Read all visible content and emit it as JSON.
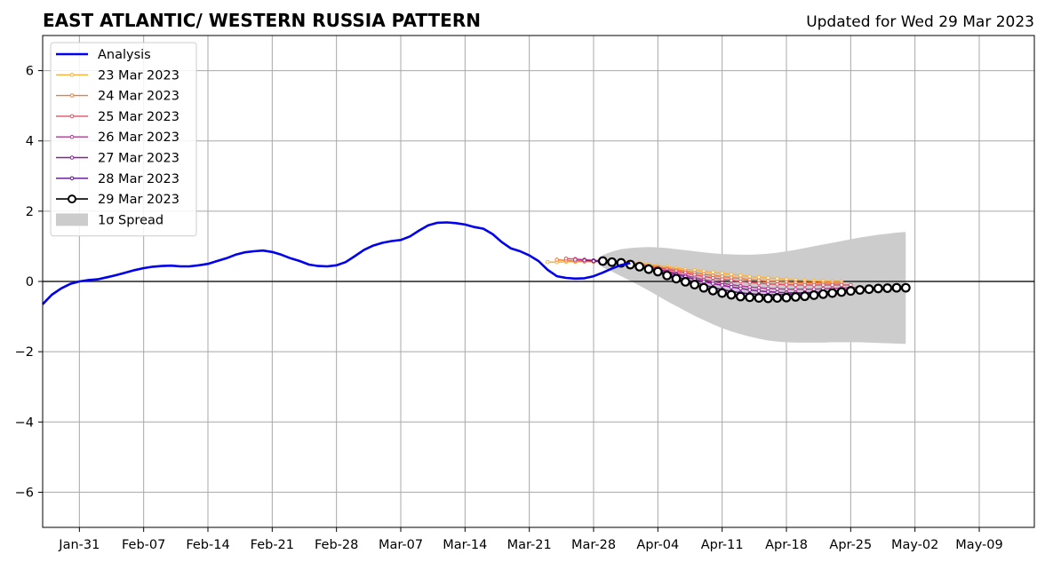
{
  "title": "EAST ATLANTIC/ WESTERN RUSSIA PATTERN",
  "updated": "Updated for Wed 29 Mar 2023",
  "chart_data": {
    "type": "line",
    "title": "EAST ATLANTIC/ WESTERN RUSSIA PATTERN",
    "xlabel": "",
    "ylabel": "",
    "xlim": [
      "2023-01-27",
      "2023-05-15"
    ],
    "ylim": [
      -7,
      7
    ],
    "grid": true,
    "legend_position": "top-left",
    "x_tick_labels": [
      "Jan-31",
      "Feb-07",
      "Feb-14",
      "Feb-21",
      "Feb-28",
      "Mar-07",
      "Mar-14",
      "Mar-21",
      "Mar-28",
      "Apr-04",
      "Apr-11",
      "Apr-18",
      "Apr-25",
      "May-02",
      "May-09"
    ],
    "x_ticks": [
      "2023-01-31",
      "2023-02-07",
      "2023-02-14",
      "2023-02-21",
      "2023-02-28",
      "2023-03-07",
      "2023-03-14",
      "2023-03-21",
      "2023-03-28",
      "2023-04-04",
      "2023-04-11",
      "2023-04-18",
      "2023-04-25",
      "2023-05-02",
      "2023-05-09"
    ],
    "y_ticks": [
      -6,
      -4,
      -2,
      0,
      2,
      4,
      6
    ],
    "y_tick_labels": [
      "−6",
      "−4",
      "−2",
      "0",
      "2",
      "4",
      "6"
    ],
    "analysis": {
      "name": "Analysis",
      "color": "#0000ee",
      "start": "2023-01-27",
      "values": [
        -0.65,
        -0.38,
        -0.2,
        -0.07,
        0.0,
        0.04,
        0.06,
        0.12,
        0.18,
        0.25,
        0.32,
        0.38,
        0.42,
        0.44,
        0.45,
        0.43,
        0.43,
        0.46,
        0.5,
        0.58,
        0.66,
        0.76,
        0.83,
        0.86,
        0.88,
        0.84,
        0.76,
        0.66,
        0.58,
        0.48,
        0.44,
        0.43,
        0.46,
        0.55,
        0.72,
        0.9,
        1.02,
        1.1,
        1.15,
        1.18,
        1.28,
        1.45,
        1.6,
        1.67,
        1.68,
        1.66,
        1.62,
        1.55,
        1.5,
        1.35,
        1.12,
        0.94,
        0.86,
        0.74,
        0.58,
        0.33,
        0.15,
        0.1,
        0.08,
        0.09,
        0.15,
        0.25,
        0.37,
        0.47,
        0.52
      ]
    },
    "forecasts": [
      {
        "name": "23 Mar 2023",
        "color": "#f9b13c",
        "start": "2023-03-23",
        "values": [
          0.55,
          0.55,
          0.56,
          0.56,
          0.57,
          0.58,
          0.58,
          0.58,
          0.57,
          0.55,
          0.52,
          0.49,
          0.45,
          0.42,
          0.38,
          0.35,
          0.32,
          0.29,
          0.26,
          0.23,
          0.2,
          0.17,
          0.14,
          0.12,
          0.1,
          0.08,
          0.06,
          0.04,
          0.03,
          0.02,
          0.01,
          0.0,
          0.0
        ]
      },
      {
        "name": "24 Mar 2023",
        "color": "#f07c3a",
        "start": "2023-03-24",
        "values": [
          0.62,
          0.6,
          0.58,
          0.57,
          0.56,
          0.56,
          0.55,
          0.54,
          0.52,
          0.49,
          0.45,
          0.41,
          0.37,
          0.33,
          0.29,
          0.25,
          0.21,
          0.17,
          0.14,
          0.11,
          0.08,
          0.05,
          0.03,
          0.01,
          -0.01,
          -0.02,
          -0.03,
          -0.04,
          -0.04,
          -0.05,
          -0.05,
          -0.05
        ]
      },
      {
        "name": "25 Mar 2023",
        "color": "#dc5566",
        "start": "2023-03-25",
        "values": [
          0.65,
          0.64,
          0.62,
          0.6,
          0.59,
          0.57,
          0.55,
          0.52,
          0.48,
          0.44,
          0.39,
          0.34,
          0.29,
          0.24,
          0.19,
          0.14,
          0.1,
          0.06,
          0.03,
          0.0,
          -0.03,
          -0.05,
          -0.07,
          -0.08,
          -0.09,
          -0.1,
          -0.1,
          -0.1,
          -0.1,
          -0.1,
          -0.1,
          -0.1
        ]
      },
      {
        "name": "26 Mar 2023",
        "color": "#b63795",
        "start": "2023-03-26",
        "values": [
          0.62,
          0.61,
          0.6,
          0.58,
          0.56,
          0.53,
          0.5,
          0.46,
          0.41,
          0.35,
          0.29,
          0.23,
          0.17,
          0.11,
          0.05,
          0.0,
          -0.05,
          -0.09,
          -0.13,
          -0.16,
          -0.18,
          -0.2,
          -0.21,
          -0.22,
          -0.22,
          -0.22,
          -0.22,
          -0.21,
          -0.2,
          -0.19,
          -0.18,
          -0.17
        ]
      },
      {
        "name": "27 Mar 2023",
        "color": "#8c1c9c",
        "start": "2023-03-27",
        "values": [
          0.6,
          0.59,
          0.57,
          0.55,
          0.53,
          0.49,
          0.45,
          0.4,
          0.34,
          0.27,
          0.2,
          0.13,
          0.06,
          0.0,
          -0.06,
          -0.11,
          -0.16,
          -0.2,
          -0.24,
          -0.27,
          -0.29,
          -0.31,
          -0.32,
          -0.32,
          -0.32,
          -0.31,
          -0.3,
          -0.28,
          -0.26,
          -0.24,
          -0.22,
          -0.2
        ]
      },
      {
        "name": "28 Mar 2023",
        "color": "#5a0f8c",
        "start": "2023-03-28",
        "values": [
          0.58,
          0.57,
          0.55,
          0.52,
          0.48,
          0.43,
          0.37,
          0.3,
          0.22,
          0.14,
          0.06,
          -0.02,
          -0.1,
          -0.17,
          -0.23,
          -0.28,
          -0.32,
          -0.35,
          -0.37,
          -0.38,
          -0.38,
          -0.37,
          -0.36,
          -0.34,
          -0.32,
          -0.3,
          -0.28,
          -0.26,
          -0.24,
          -0.22,
          -0.2,
          -0.19
        ]
      },
      {
        "name": "29 Mar 2023",
        "color": "#000000",
        "start": "2023-03-29",
        "values": [
          0.58,
          0.55,
          0.53,
          0.48,
          0.42,
          0.35,
          0.28,
          0.17,
          0.08,
          -0.01,
          -0.09,
          -0.18,
          -0.26,
          -0.33,
          -0.38,
          -0.43,
          -0.45,
          -0.47,
          -0.48,
          -0.47,
          -0.46,
          -0.44,
          -0.42,
          -0.39,
          -0.36,
          -0.33,
          -0.3,
          -0.27,
          -0.24,
          -0.22,
          -0.2,
          -0.19,
          -0.18,
          -0.18
        ]
      }
    ],
    "spread": {
      "name": "1σ Spread",
      "color": "#cccccc",
      "start": "2023-03-29",
      "upper": [
        0.75,
        0.85,
        0.92,
        0.95,
        0.97,
        0.98,
        0.97,
        0.95,
        0.92,
        0.89,
        0.86,
        0.83,
        0.8,
        0.78,
        0.77,
        0.76,
        0.76,
        0.77,
        0.79,
        0.82,
        0.86,
        0.9,
        0.95,
        1.0,
        1.05,
        1.1,
        1.15,
        1.2,
        1.25,
        1.29,
        1.33,
        1.36,
        1.39,
        1.41
      ],
      "lower": [
        0.4,
        0.28,
        0.15,
        0.02,
        -0.12,
        -0.26,
        -0.41,
        -0.56,
        -0.7,
        -0.84,
        -0.98,
        -1.1,
        -1.22,
        -1.33,
        -1.42,
        -1.5,
        -1.57,
        -1.63,
        -1.68,
        -1.71,
        -1.73,
        -1.74,
        -1.74,
        -1.74,
        -1.74,
        -1.73,
        -1.73,
        -1.73,
        -1.73,
        -1.74,
        -1.75,
        -1.76,
        -1.77,
        -1.78
      ]
    }
  }
}
